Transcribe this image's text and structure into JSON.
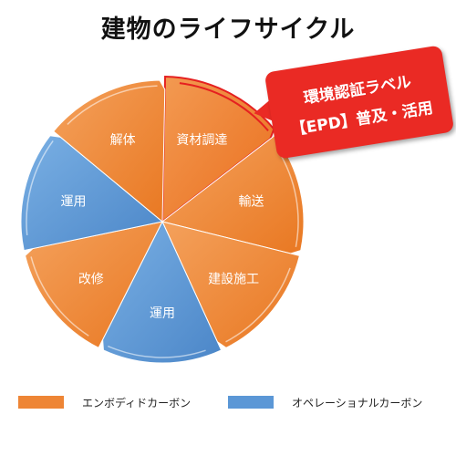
{
  "title": "建物のライフサイクル",
  "colors": {
    "embodied": "#ee8535",
    "embodied_highlight": "#ef7b2c",
    "operational": "#5b97d6",
    "callout": "#ea2a24",
    "highlight_border": "#e52020"
  },
  "segments": [
    {
      "label": "資材調達",
      "category": "embodied",
      "highlighted": true
    },
    {
      "label": "輸送",
      "category": "embodied",
      "highlighted": false
    },
    {
      "label": "建設施工",
      "category": "embodied",
      "highlighted": false
    },
    {
      "label": "運用",
      "category": "operational",
      "highlighted": false
    },
    {
      "label": "改修",
      "category": "embodied",
      "highlighted": false
    },
    {
      "label": "運用",
      "category": "operational",
      "highlighted": false
    },
    {
      "label": "解体",
      "category": "embodied",
      "highlighted": false
    }
  ],
  "callout": {
    "line1": "環境認証ラベル",
    "line2": "【EPD】普及・活用"
  },
  "legend": [
    {
      "label": "エンボディドカーボン",
      "category": "embodied"
    },
    {
      "label": "オペレーショナルカーボン",
      "category": "operational"
    }
  ]
}
